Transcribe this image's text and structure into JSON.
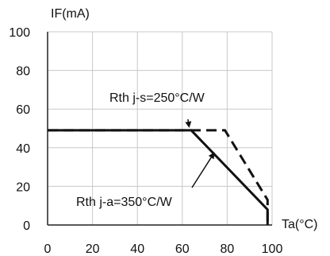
{
  "chart_data": {
    "type": "line",
    "title": "",
    "xlabel": "Ta(°C)",
    "ylabel": "IF(mA)",
    "xlim": [
      0,
      100
    ],
    "ylim": [
      0,
      100
    ],
    "xticks": [
      0,
      20,
      40,
      60,
      80,
      100
    ],
    "yticks": [
      0,
      20,
      40,
      60,
      80,
      100
    ],
    "grid": true,
    "series": [
      {
        "style": "dashed",
        "x": [
          0,
          79,
          98,
          98
        ],
        "y": [
          49,
          49,
          13,
          0
        ]
      },
      {
        "style": "solid",
        "x": [
          0,
          64,
          98,
          98
        ],
        "y": [
          49,
          49,
          8,
          0
        ]
      }
    ],
    "annotations": [
      {
        "text": "Rth j-s=250°C/W",
        "target_x": 63,
        "target_y": 49
      },
      {
        "text": "Rth j-a=350°C/W",
        "target_x": 74,
        "target_y": 37
      }
    ]
  }
}
